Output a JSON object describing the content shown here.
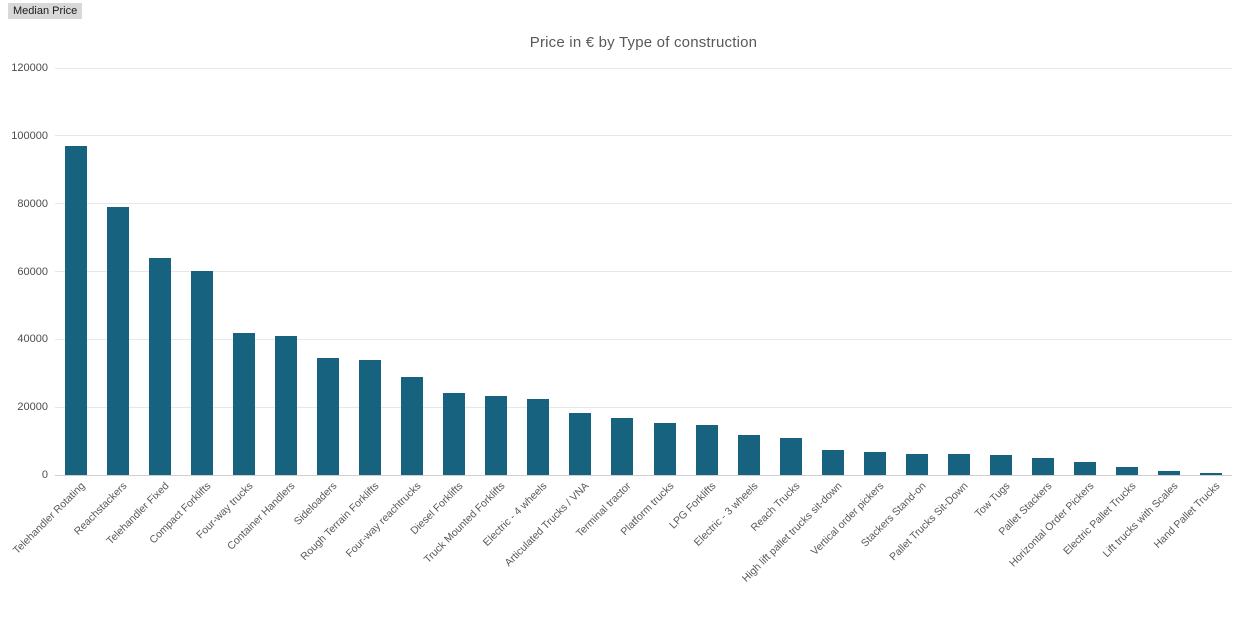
{
  "badge": {
    "label": "Median Price"
  },
  "chart_data": {
    "type": "bar",
    "title": "Price in € by Type of construction",
    "series_name": "Median Price",
    "categories": [
      "Telehandler Rotating",
      "Reachstackers",
      "Telehandler Fixed",
      "Compact Forklifts",
      "Four-way trucks",
      "Container Handlers",
      "Sideloaders",
      "Rough Terrain Forklifts",
      "Four-way reachtrucks",
      "Diesel Forklifts",
      "Truck Mounted Forklifts",
      "Electric - 4 wheels",
      "Articulated Trucks / VNA",
      "Terminal tractor",
      "Platform trucks",
      "LPG Forklifts",
      "Electric - 3 wheels",
      "Reach Trucks",
      "High lift pallet trucks sit-down",
      "Vertical order pickers",
      "Stackers Stand-on",
      "Pallet Trucks Sit-Down",
      "Tow Tugs",
      "Pallet Stackers",
      "Horizontal Order Pickers",
      "Electric Pallet Trucks",
      "Lift trucks with Scales",
      "Hand Pallet Trucks"
    ],
    "values": [
      97000,
      79000,
      64000,
      60000,
      42000,
      41000,
      34500,
      34000,
      28800,
      24300,
      23300,
      22500,
      18300,
      16800,
      15200,
      14800,
      11800,
      11000,
      7500,
      6800,
      6200,
      6300,
      5800,
      5100,
      3800,
      2500,
      1300,
      500
    ],
    "xlabel": "",
    "ylabel": "",
    "ylim": [
      0,
      120000
    ],
    "yticks": [
      0,
      20000,
      40000,
      60000,
      80000,
      100000,
      120000
    ],
    "grid": true,
    "legend_position": "none"
  },
  "colors": {
    "bar": "#17627F",
    "gridline": "#e7e7e7",
    "axis_line": "#cfcfcf",
    "title_text": "#595959",
    "ytick_text": "#4c4c4c",
    "xtick_text": "#595959",
    "badge_bg": "#d8d8d8",
    "badge_text": "#1a1a1a",
    "background": "#ffffff"
  }
}
